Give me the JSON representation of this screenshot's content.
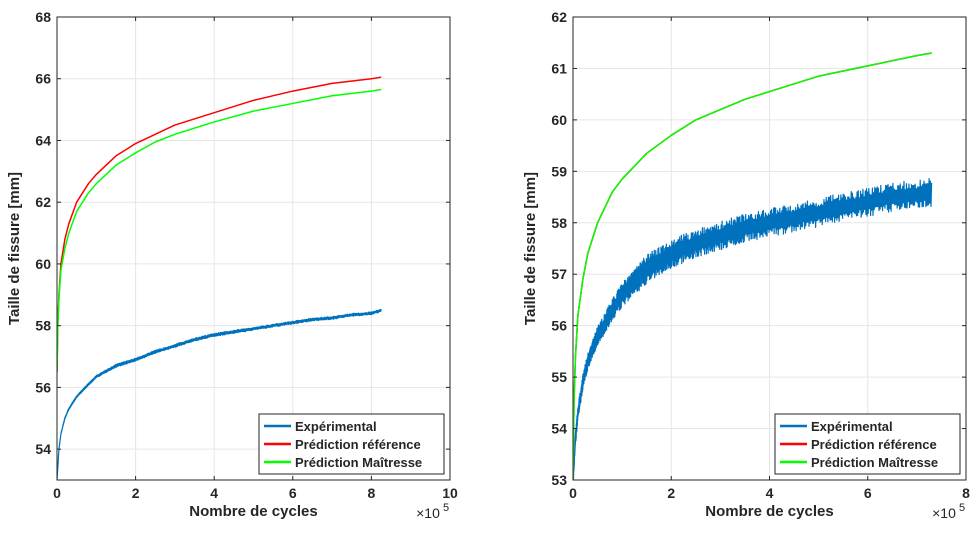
{
  "chart_data": [
    {
      "type": "line",
      "xlabel": "Nombre de cycles",
      "ylabel": "Taille de fissure [mm]",
      "x_multiplier_label": "×10",
      "x_multiplier_exp": "5",
      "xlim": [
        0,
        10
      ],
      "ylim": [
        53,
        68
      ],
      "xticks": [
        0,
        2,
        4,
        6,
        8,
        10
      ],
      "yticks": [
        54,
        56,
        58,
        60,
        62,
        64,
        66,
        68
      ],
      "grid": true,
      "legend_position": "bottom-right",
      "series": [
        {
          "name": "Expérimental",
          "color": "#0072BD",
          "noise": 0.05,
          "points": [
            [
              0,
              53.0
            ],
            [
              0.05,
              54.0
            ],
            [
              0.1,
              54.5
            ],
            [
              0.2,
              55.0
            ],
            [
              0.3,
              55.3
            ],
            [
              0.5,
              55.7
            ],
            [
              0.8,
              56.1
            ],
            [
              1.0,
              56.35
            ],
            [
              1.5,
              56.7
            ],
            [
              2.0,
              56.9
            ],
            [
              2.5,
              57.15
            ],
            [
              3.0,
              57.35
            ],
            [
              3.5,
              57.55
            ],
            [
              4.0,
              57.7
            ],
            [
              4.5,
              57.8
            ],
            [
              5.0,
              57.9
            ],
            [
              5.5,
              58.0
            ],
            [
              6.0,
              58.1
            ],
            [
              6.5,
              58.2
            ],
            [
              7.0,
              58.25
            ],
            [
              7.5,
              58.35
            ],
            [
              8.0,
              58.4
            ],
            [
              8.25,
              58.5
            ]
          ]
        },
        {
          "name": "Prédiction référence",
          "color": "#FF0000",
          "points": [
            [
              0,
              56.5
            ],
            [
              0.02,
              58.0
            ],
            [
              0.05,
              59.0
            ],
            [
              0.1,
              60.0
            ],
            [
              0.2,
              60.8
            ],
            [
              0.3,
              61.3
            ],
            [
              0.5,
              62.0
            ],
            [
              0.8,
              62.6
            ],
            [
              1.0,
              62.9
            ],
            [
              1.5,
              63.5
            ],
            [
              2.0,
              63.9
            ],
            [
              2.5,
              64.2
            ],
            [
              3.0,
              64.5
            ],
            [
              4.0,
              64.9
            ],
            [
              5.0,
              65.3
            ],
            [
              6.0,
              65.6
            ],
            [
              7.0,
              65.85
            ],
            [
              8.0,
              66.0
            ],
            [
              8.25,
              66.05
            ]
          ]
        },
        {
          "name": "Prédiction Maîtresse",
          "color": "#00FF00",
          "points": [
            [
              0,
              56.5
            ],
            [
              0.02,
              58.0
            ],
            [
              0.05,
              58.9
            ],
            [
              0.1,
              59.8
            ],
            [
              0.2,
              60.5
            ],
            [
              0.3,
              61.0
            ],
            [
              0.5,
              61.7
            ],
            [
              0.8,
              62.3
            ],
            [
              1.0,
              62.6
            ],
            [
              1.5,
              63.2
            ],
            [
              2.0,
              63.6
            ],
            [
              2.5,
              63.95
            ],
            [
              3.0,
              64.2
            ],
            [
              4.0,
              64.6
            ],
            [
              5.0,
              64.95
            ],
            [
              6.0,
              65.2
            ],
            [
              7.0,
              65.45
            ],
            [
              8.0,
              65.6
            ],
            [
              8.25,
              65.65
            ]
          ]
        }
      ]
    },
    {
      "type": "line",
      "xlabel": "Nombre de cycles",
      "ylabel": "Taille de fissure [mm]",
      "x_multiplier_label": "×10",
      "x_multiplier_exp": "5",
      "xlim": [
        0,
        8
      ],
      "ylim": [
        53,
        62
      ],
      "xticks": [
        0,
        2,
        4,
        6,
        8
      ],
      "yticks": [
        53,
        54,
        55,
        56,
        57,
        58,
        59,
        60,
        61,
        62
      ],
      "grid": true,
      "legend_position": "bottom-right",
      "series": [
        {
          "name": "Expérimental",
          "color": "#0072BD",
          "noise": 0.28,
          "points": [
            [
              0,
              53.0
            ],
            [
              0.05,
              53.8
            ],
            [
              0.1,
              54.3
            ],
            [
              0.2,
              54.9
            ],
            [
              0.3,
              55.3
            ],
            [
              0.5,
              55.8
            ],
            [
              0.8,
              56.3
            ],
            [
              1.0,
              56.6
            ],
            [
              1.5,
              57.1
            ],
            [
              2.0,
              57.4
            ],
            [
              2.5,
              57.6
            ],
            [
              3.0,
              57.75
            ],
            [
              3.5,
              57.9
            ],
            [
              4.0,
              58.0
            ],
            [
              4.5,
              58.1
            ],
            [
              5.0,
              58.2
            ],
            [
              5.5,
              58.3
            ],
            [
              6.0,
              58.4
            ],
            [
              6.5,
              58.5
            ],
            [
              7.0,
              58.55
            ],
            [
              7.3,
              58.6
            ]
          ]
        },
        {
          "name": "Prédiction référence",
          "color": "#FF0000",
          "points": [
            [
              0,
              53.0
            ],
            [
              0.02,
              54.5
            ],
            [
              0.05,
              55.4
            ],
            [
              0.1,
              56.2
            ],
            [
              0.2,
              56.9
            ],
            [
              0.3,
              57.4
            ],
            [
              0.5,
              58.0
            ],
            [
              0.8,
              58.6
            ],
            [
              1.0,
              58.85
            ],
            [
              1.5,
              59.35
            ],
            [
              2.0,
              59.7
            ],
            [
              2.5,
              60.0
            ],
            [
              3.0,
              60.2
            ],
            [
              3.5,
              60.4
            ],
            [
              4.0,
              60.55
            ],
            [
              5.0,
              60.85
            ],
            [
              6.0,
              61.05
            ],
            [
              7.0,
              61.25
            ],
            [
              7.3,
              61.3
            ]
          ]
        },
        {
          "name": "Prédiction Maîtresse",
          "color": "#00FF00",
          "points": [
            [
              0,
              53.0
            ],
            [
              0.02,
              54.5
            ],
            [
              0.05,
              55.4
            ],
            [
              0.1,
              56.2
            ],
            [
              0.2,
              56.9
            ],
            [
              0.3,
              57.4
            ],
            [
              0.5,
              58.0
            ],
            [
              0.8,
              58.6
            ],
            [
              1.0,
              58.85
            ],
            [
              1.5,
              59.35
            ],
            [
              2.0,
              59.7
            ],
            [
              2.5,
              60.0
            ],
            [
              3.0,
              60.2
            ],
            [
              3.5,
              60.4
            ],
            [
              4.0,
              60.55
            ],
            [
              5.0,
              60.85
            ],
            [
              6.0,
              61.05
            ],
            [
              7.0,
              61.25
            ],
            [
              7.3,
              61.3
            ]
          ]
        }
      ]
    }
  ]
}
